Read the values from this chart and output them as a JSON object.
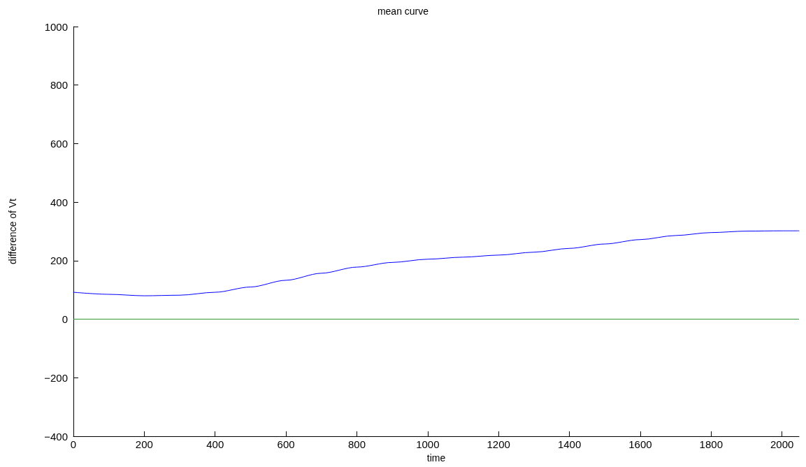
{
  "chart_data": {
    "type": "line",
    "title": "mean curve",
    "xlabel": "time",
    "ylabel": "difference of Vt",
    "x": [
      0,
      100,
      200,
      300,
      400,
      500,
      600,
      700,
      800,
      900,
      1000,
      1100,
      1200,
      1300,
      1400,
      1500,
      1600,
      1700,
      1800,
      1900,
      2000,
      2048
    ],
    "series": [
      {
        "color": "#0000ff",
        "values": [
          92,
          85,
          80,
          82,
          92,
          110,
          133,
          157,
          178,
          194,
          205,
          212,
          219,
          229,
          242,
          257,
          272,
          286,
          296,
          301,
          302,
          302
        ]
      }
    ],
    "xlim": [
      0,
      2048
    ],
    "xticks": [
      0,
      200,
      400,
      600,
      800,
      1000,
      1200,
      1400,
      1600,
      1800,
      2000
    ],
    "ylim": [
      -400,
      1000
    ],
    "yticks": [
      -400,
      -200,
      0,
      200,
      400,
      600,
      800,
      1000
    ],
    "ref_lines": [
      {
        "axis": "y",
        "value": 0,
        "color": "#339933"
      }
    ],
    "marker": "none",
    "line_style": "solid"
  }
}
